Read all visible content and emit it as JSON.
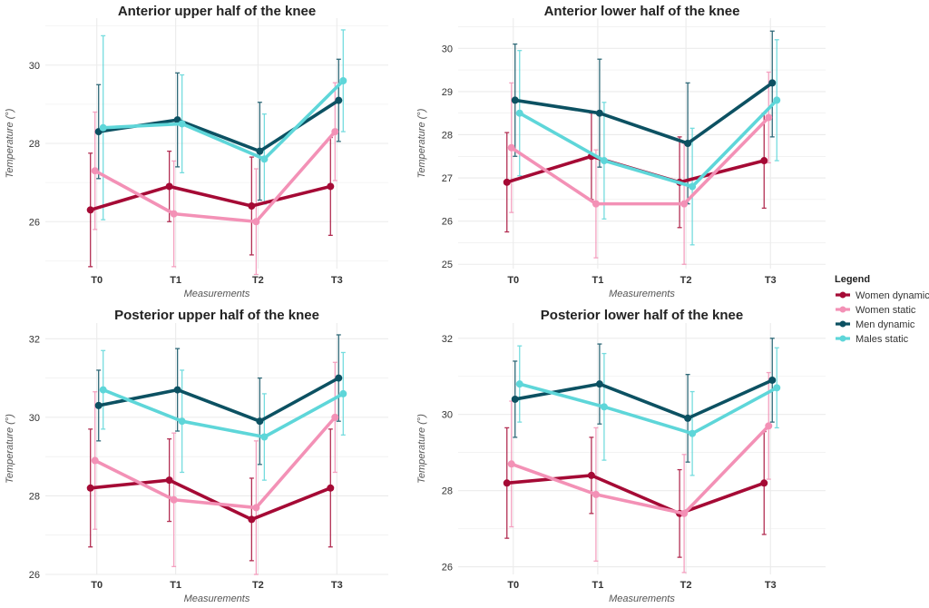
{
  "colors": {
    "women_dynamic": "#a50a35",
    "women_static": "#f391b6",
    "men_dynamic": "#0c5162",
    "men_static": "#5ed6d9",
    "grid": "#ebebeb"
  },
  "legend": {
    "title": "Legend",
    "items": [
      "Women dynamic",
      "Women static",
      "Men dynamic",
      "Males static"
    ]
  },
  "chart_data": [
    {
      "type": "line",
      "title": "Anterior upper half of the knee",
      "xlabel": "Measurements",
      "ylabel": "Temperature (°)",
      "categories": [
        "T0",
        "T1",
        "T2",
        "T3"
      ],
      "ylim": [
        24.8,
        31.2
      ],
      "yticks": [
        26,
        28,
        30
      ],
      "series": [
        {
          "name": "Women dynamic",
          "values": [
            26.3,
            26.9,
            26.4,
            26.9
          ],
          "err_low": [
            24.85,
            26.0,
            25.15,
            25.65
          ],
          "err_high": [
            27.75,
            27.8,
            27.65,
            28.15
          ]
        },
        {
          "name": "Women static",
          "values": [
            27.3,
            26.2,
            26.0,
            28.3
          ],
          "err_low": [
            25.8,
            24.85,
            24.65,
            27.05
          ],
          "err_high": [
            28.8,
            27.55,
            27.35,
            29.55
          ]
        },
        {
          "name": "Men dynamic",
          "values": [
            28.3,
            28.6,
            27.8,
            29.1
          ],
          "err_low": [
            27.1,
            27.4,
            26.55,
            28.05
          ],
          "err_high": [
            29.5,
            29.8,
            29.05,
            30.15
          ]
        },
        {
          "name": "Males static",
          "values": [
            28.4,
            28.5,
            27.6,
            29.6
          ],
          "err_low": [
            26.05,
            27.25,
            26.45,
            28.3
          ],
          "err_high": [
            30.75,
            29.75,
            28.75,
            30.9
          ]
        }
      ]
    },
    {
      "type": "line",
      "title": "Anterior lower half of the knee",
      "xlabel": "Measurements",
      "ylabel": "Temperature (°)",
      "categories": [
        "T0",
        "T1",
        "T2",
        "T3"
      ],
      "ylim": [
        24.9,
        30.7
      ],
      "yticks": [
        25,
        26,
        27,
        28,
        29,
        30
      ],
      "series": [
        {
          "name": "Women dynamic",
          "values": [
            26.9,
            27.5,
            26.9,
            27.4
          ],
          "err_low": [
            25.75,
            26.5,
            25.85,
            26.3
          ],
          "err_high": [
            28.05,
            28.5,
            27.95,
            28.5
          ]
        },
        {
          "name": "Women static",
          "values": [
            27.7,
            26.4,
            26.4,
            28.4
          ],
          "err_low": [
            26.2,
            25.15,
            25.0,
            27.35
          ],
          "err_high": [
            29.2,
            27.65,
            27.8,
            29.45
          ]
        },
        {
          "name": "Men dynamic",
          "values": [
            28.8,
            28.5,
            27.8,
            29.2
          ],
          "err_low": [
            27.5,
            27.25,
            26.4,
            27.95
          ],
          "err_high": [
            30.1,
            29.75,
            29.2,
            30.4
          ]
        },
        {
          "name": "Males static",
          "values": [
            28.5,
            27.4,
            26.8,
            28.8
          ],
          "err_low": [
            27.05,
            26.05,
            25.45,
            27.4
          ],
          "err_high": [
            29.95,
            28.75,
            28.15,
            30.2
          ]
        }
      ]
    },
    {
      "type": "line",
      "title": "Posterior upper half of the knee",
      "xlabel": "Measurements",
      "ylabel": "Temperature (°)",
      "categories": [
        "T0",
        "T1",
        "T2",
        "T3"
      ],
      "ylim": [
        26.0,
        32.4
      ],
      "yticks": [
        26,
        28,
        30,
        32
      ],
      "series": [
        {
          "name": "Women dynamic",
          "values": [
            28.2,
            28.4,
            27.4,
            28.2
          ],
          "err_low": [
            26.7,
            27.35,
            26.35,
            26.7
          ],
          "err_high": [
            29.7,
            29.45,
            28.45,
            29.7
          ]
        },
        {
          "name": "Women static",
          "values": [
            28.9,
            27.9,
            27.7,
            30.0
          ],
          "err_low": [
            27.15,
            26.2,
            26.0,
            28.6
          ],
          "err_high": [
            30.65,
            29.6,
            29.4,
            31.4
          ]
        },
        {
          "name": "Men dynamic",
          "values": [
            30.3,
            30.7,
            29.9,
            31.0
          ],
          "err_low": [
            29.4,
            29.65,
            28.8,
            29.9
          ],
          "err_high": [
            31.2,
            31.75,
            31.0,
            32.1
          ]
        },
        {
          "name": "Males static",
          "values": [
            30.7,
            29.9,
            29.5,
            30.6
          ],
          "err_low": [
            29.7,
            28.6,
            28.4,
            29.55
          ],
          "err_high": [
            31.7,
            31.2,
            30.6,
            31.65
          ]
        }
      ]
    },
    {
      "type": "line",
      "title": "Posterior lower half of the knee",
      "xlabel": "Measurements",
      "ylabel": "Temperature (°)",
      "categories": [
        "T0",
        "T1",
        "T2",
        "T3"
      ],
      "ylim": [
        25.8,
        32.4
      ],
      "yticks": [
        26,
        28,
        30,
        32
      ],
      "series": [
        {
          "name": "Women dynamic",
          "values": [
            28.2,
            28.4,
            27.4,
            28.2
          ],
          "err_low": [
            26.75,
            27.4,
            26.25,
            26.85
          ],
          "err_high": [
            29.65,
            29.4,
            28.55,
            29.55
          ]
        },
        {
          "name": "Women static",
          "values": [
            28.7,
            27.9,
            27.4,
            29.7
          ],
          "err_low": [
            27.05,
            26.15,
            25.85,
            28.3
          ],
          "err_high": [
            30.35,
            29.65,
            28.95,
            31.1
          ]
        },
        {
          "name": "Men dynamic",
          "values": [
            30.4,
            30.8,
            29.9,
            30.9
          ],
          "err_low": [
            29.4,
            29.75,
            28.75,
            29.8
          ],
          "err_high": [
            31.4,
            31.85,
            31.05,
            32.0
          ]
        },
        {
          "name": "Males static",
          "values": [
            30.8,
            30.2,
            29.5,
            30.7
          ],
          "err_low": [
            29.8,
            28.8,
            28.4,
            29.65
          ],
          "err_high": [
            31.8,
            31.6,
            30.6,
            31.75
          ]
        }
      ]
    }
  ]
}
